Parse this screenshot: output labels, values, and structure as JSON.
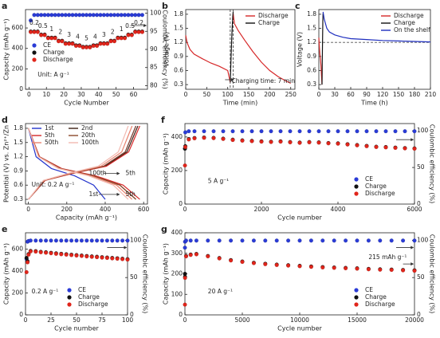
{
  "chart_data": [
    {
      "label": "a",
      "type": "scatter",
      "xlabel": "Cycle Number",
      "ylabel": "Capacity (mAh g⁻¹)",
      "y2label": "Coulombic efficiency (%)",
      "xlim": [
        -2,
        68
      ],
      "ylim": [
        0,
        780
      ],
      "y2lim": [
        79,
        101
      ],
      "xticks": [
        0,
        10,
        20,
        30,
        40,
        50,
        60
      ],
      "yticks": [
        0,
        200,
        400,
        600
      ],
      "y2ticks": [
        80,
        85,
        90,
        95,
        100
      ],
      "x": [
        1,
        3,
        5,
        7,
        9,
        11,
        13,
        15,
        17,
        19,
        21,
        23,
        25,
        27,
        29,
        31,
        33,
        35,
        37,
        39,
        41,
        43,
        45,
        47,
        49,
        51,
        53,
        55,
        57,
        59,
        61,
        63,
        65
      ],
      "series": [
        {
          "name": "CE",
          "color": "#2a3bd6",
          "axis": "y2",
          "values": [
            98,
            99.5,
            99.5,
            99.5,
            99.5,
            99.5,
            99.5,
            99.5,
            99.5,
            99.5,
            99.5,
            99.5,
            99.5,
            99.5,
            99.5,
            99.5,
            99.5,
            99.5,
            99.5,
            99.5,
            99.5,
            99.5,
            99.5,
            99.5,
            99.5,
            99.5,
            99.5,
            99.5,
            99.5,
            99.5,
            99.5,
            99.5,
            99.5
          ]
        },
        {
          "name": "Charge",
          "color": "#111111",
          "values": [
            565,
            565,
            565,
            535,
            535,
            505,
            505,
            505,
            475,
            475,
            450,
            450,
            450,
            430,
            430,
            415,
            415,
            415,
            430,
            430,
            450,
            450,
            450,
            475,
            475,
            505,
            505,
            505,
            535,
            535,
            565,
            565,
            565
          ]
        },
        {
          "name": "Discharge",
          "color": "#e0251b",
          "values": [
            560,
            560,
            560,
            530,
            530,
            500,
            500,
            500,
            470,
            470,
            445,
            445,
            445,
            425,
            425,
            410,
            410,
            410,
            425,
            425,
            445,
            445,
            445,
            470,
            470,
            500,
            500,
            500,
            530,
            530,
            560,
            560,
            560
          ]
        }
      ],
      "rate_labels": [
        0.2,
        0.5,
        1,
        2,
        3,
        4,
        5,
        4,
        3,
        2,
        1,
        0.5,
        0.2
      ],
      "annotations": [
        "Unit: A g⁻¹"
      ],
      "legend": "center left"
    },
    {
      "label": "b",
      "type": "line",
      "xlabel": "Time (min)",
      "ylabel": "Voltage (V)",
      "xlim": [
        0,
        260
      ],
      "ylim": [
        0.2,
        1.9
      ],
      "xticks": [
        0,
        50,
        100,
        150,
        200,
        250
      ],
      "yticks": [
        0.3,
        0.6,
        0.9,
        1.2,
        1.5,
        1.8
      ],
      "series": [
        {
          "name": "Discharge",
          "color": "#d62728",
          "x": [
            0,
            3,
            10,
            20,
            40,
            60,
            80,
            100,
            106,
            null,
            113,
            116,
            125,
            140,
            160,
            180,
            200,
            220,
            240,
            250
          ],
          "values": [
            1.35,
            1.2,
            1.05,
            0.95,
            0.85,
            0.76,
            0.69,
            0.6,
            0.35,
            null,
            1.82,
            1.6,
            1.45,
            1.25,
            1.0,
            0.78,
            0.6,
            0.47,
            0.37,
            0.33
          ]
        },
        {
          "name": "Charge",
          "color": "#111111",
          "x": [
            106,
            108,
            110,
            112,
            113
          ],
          "values": [
            0.35,
            0.9,
            1.4,
            1.75,
            1.85
          ]
        }
      ],
      "vlines": [
        106,
        113
      ],
      "annotations": [
        "Charging time: 7 min"
      ],
      "legend": "upper right"
    },
    {
      "label": "c",
      "type": "line",
      "xlabel": "Time (h)",
      "ylabel": "Voltage (V)",
      "xlim": [
        0,
        210
      ],
      "ylim": [
        0.2,
        1.9
      ],
      "xticks": [
        0,
        30,
        60,
        90,
        120,
        150,
        180,
        210
      ],
      "yticks": [
        0.3,
        0.6,
        0.9,
        1.2,
        1.5,
        1.8
      ],
      "series": [
        {
          "name": "Discharge",
          "color": "#d62728",
          "x": [
            0,
            1,
            2,
            3,
            4,
            5,
            6
          ],
          "values": [
            1.3,
            1.1,
            0.95,
            0.85,
            0.7,
            0.5,
            0.3
          ]
        },
        {
          "name": "Charge",
          "color": "#111111",
          "x": [
            6,
            6.5,
            7,
            7.5,
            8
          ],
          "values": [
            0.3,
            0.8,
            1.3,
            1.65,
            1.82
          ]
        },
        {
          "name": "On the shelf",
          "color": "#1f2fbf",
          "x": [
            8,
            10,
            15,
            20,
            30,
            45,
            60,
            90,
            120,
            150,
            180,
            210
          ],
          "values": [
            1.85,
            1.7,
            1.5,
            1.42,
            1.36,
            1.31,
            1.28,
            1.26,
            1.24,
            1.23,
            1.22,
            1.21
          ]
        }
      ],
      "hline": 1.2,
      "legend": "upper right"
    },
    {
      "label": "d",
      "type": "line",
      "xlabel": "Capacity (mAh g⁻¹)",
      "ylabel": "Potential (V) vs. Zn²⁺/Zn",
      "xlim": [
        -15,
        620
      ],
      "ylim": [
        0.2,
        1.9
      ],
      "xticks": [
        0,
        200,
        400,
        600
      ],
      "yticks": [
        0.3,
        0.6,
        0.9,
        1.2,
        1.5,
        1.8
      ],
      "series": [
        {
          "name": "1st",
          "color": "#2233cc",
          "x": [
            0,
            40,
            120,
            240,
            340,
            400,
            null,
            0,
            84,
            224,
            392,
            504,
            560
          ],
          "values": [
            1.8,
            1.2,
            0.95,
            0.8,
            0.6,
            0.3,
            null,
            0.3,
            0.7,
            0.85,
            1.0,
            1.3,
            1.85
          ]
        },
        {
          "name": "2nd",
          "color": "#3a1f12",
          "x": [
            0,
            56,
            168,
            336,
            476,
            560,
            null,
            0,
            86,
            228,
            399,
            513,
            570
          ],
          "values": [
            1.8,
            1.2,
            0.95,
            0.8,
            0.6,
            0.3,
            null,
            0.3,
            0.7,
            0.85,
            1.0,
            1.3,
            1.85
          ]
        },
        {
          "name": "5th",
          "color": "#d62728",
          "x": [
            0,
            58,
            174,
            348,
            493,
            580,
            null,
            0,
            87,
            232,
            406,
            522,
            580
          ],
          "values": [
            1.8,
            1.2,
            0.95,
            0.8,
            0.6,
            0.3,
            null,
            0.3,
            0.7,
            0.85,
            1.0,
            1.3,
            1.85
          ]
        },
        {
          "name": "20th",
          "color": "#8b4a2b",
          "x": [
            0,
            56,
            168,
            336,
            476,
            560,
            null,
            0,
            84,
            224,
            392,
            504,
            560
          ],
          "values": [
            1.8,
            1.2,
            0.95,
            0.8,
            0.6,
            0.3,
            null,
            0.3,
            0.7,
            0.85,
            1.0,
            1.3,
            1.85
          ]
        },
        {
          "name": "50th",
          "color": "#e8826e",
          "x": [
            0,
            54,
            162,
            324,
            459,
            540,
            null,
            0,
            81,
            216,
            378,
            486,
            540
          ],
          "values": [
            1.8,
            1.2,
            0.95,
            0.8,
            0.6,
            0.3,
            null,
            0.3,
            0.7,
            0.85,
            1.0,
            1.3,
            1.85
          ]
        },
        {
          "name": "100th",
          "color": "#f2b9b0",
          "x": [
            0,
            52,
            156,
            312,
            442,
            520,
            null,
            0,
            78,
            208,
            364,
            468,
            520
          ],
          "values": [
            1.8,
            1.2,
            0.95,
            0.8,
            0.6,
            0.3,
            null,
            0.3,
            0.7,
            0.85,
            1.0,
            1.3,
            1.85
          ]
        }
      ],
      "annotations": [
        "100th",
        "5th",
        "1st",
        "5th",
        "Unit: 0.2 A g⁻¹"
      ],
      "legend": "upper left"
    },
    {
      "label": "e",
      "type": "scatter",
      "xlabel": "Cycle number",
      "ylabel": "Capacity (mAh g⁻¹)",
      "y2label": "Coulombic efficiency (%)",
      "xlim": [
        0,
        100
      ],
      "ylim": [
        0,
        750
      ],
      "y2lim": [
        0,
        110
      ],
      "xticks": [
        0,
        25,
        50,
        75,
        100
      ],
      "yticks": [
        0,
        200,
        400,
        600
      ],
      "y2ticks": [
        0,
        50,
        100
      ],
      "x": [
        1,
        2,
        3,
        5,
        10,
        15,
        20,
        25,
        30,
        35,
        40,
        45,
        50,
        55,
        60,
        65,
        70,
        75,
        80,
        85,
        90,
        95,
        100
      ],
      "series": [
        {
          "name": "CE",
          "color": "#2a3bd6",
          "axis": "y2",
          "values": [
            75,
            98,
            99,
            99.5,
            99.5,
            99.5,
            99.5,
            99.5,
            99.5,
            99.5,
            99.5,
            99.5,
            99.5,
            99.5,
            99.5,
            99.5,
            99.5,
            99.5,
            99.5,
            99.5,
            99.5,
            99.5,
            99.5
          ]
        },
        {
          "name": "Charge",
          "color": "#111111",
          "values": [
            520,
            490,
            555,
            584,
            582,
            576,
            572,
            567,
            562,
            558,
            554,
            550,
            546,
            542,
            538,
            534,
            531,
            527,
            524,
            520,
            517,
            513,
            509
          ]
        },
        {
          "name": "Discharge",
          "color": "#e0251b",
          "values": [
            390,
            480,
            550,
            580,
            578,
            572,
            568,
            563,
            558,
            554,
            550,
            546,
            542,
            538,
            534,
            530,
            527,
            523,
            520,
            516,
            513,
            509,
            505
          ]
        }
      ],
      "annotations": [
        "0.2 A g⁻¹"
      ],
      "legend": "lower right"
    },
    {
      "label": "f",
      "type": "scatter",
      "xlabel": "Cycle number",
      "ylabel": "Capacity (mAh g⁻¹)",
      "y2label": "Coulombic efficiency (%)",
      "xlim": [
        0,
        6000
      ],
      "ylim": [
        0,
        480
      ],
      "y2lim": [
        0,
        110
      ],
      "xticks": [
        0,
        2000,
        4000,
        6000
      ],
      "yticks": [
        0,
        200,
        400
      ],
      "y2ticks": [
        0,
        50,
        100
      ],
      "x": [
        1,
        10,
        100,
        250,
        500,
        750,
        1000,
        1250,
        1500,
        1750,
        2000,
        2250,
        2500,
        2750,
        3000,
        3250,
        3500,
        3750,
        4000,
        4250,
        4500,
        4750,
        5000,
        5250,
        5500,
        5750,
        6000
      ],
      "series": [
        {
          "name": "CE",
          "color": "#2a3bd6",
          "axis": "y2",
          "values": [
            76,
            98,
            99.5,
            99.5,
            99.5,
            99.5,
            99.5,
            99.5,
            99.5,
            99.5,
            99.5,
            99.5,
            99.5,
            99.5,
            99.5,
            99.5,
            99.5,
            99.5,
            99.5,
            99.5,
            99.5,
            99.5,
            99.5,
            99.5,
            99.5,
            99.5,
            99.5
          ]
        },
        {
          "name": "Charge",
          "color": "#111111",
          "values": [
            330,
            345,
            388,
            394,
            397,
            395,
            390,
            384,
            380,
            377,
            374,
            372,
            374,
            370,
            367,
            370,
            368,
            364,
            362,
            357,
            352,
            347,
            342,
            340,
            337,
            334,
            332
          ]
        },
        {
          "name": "Discharge",
          "color": "#e0251b",
          "values": [
            230,
            340,
            385,
            392,
            395,
            393,
            388,
            382,
            378,
            375,
            372,
            370,
            372,
            368,
            365,
            368,
            366,
            362,
            360,
            355,
            350,
            345,
            340,
            338,
            335,
            332,
            330
          ]
        }
      ],
      "annotations": [
        "5 A g⁻¹"
      ],
      "legend": "lower right"
    },
    {
      "label": "g",
      "type": "scatter",
      "xlabel": "Cycle number",
      "ylabel": "Capacity (mAh g⁻¹)",
      "y2label": "Coulombic efficiency (%)",
      "xlim": [
        0,
        20000
      ],
      "ylim": [
        0,
        400
      ],
      "y2lim": [
        0,
        110
      ],
      "xticks": [
        0,
        5000,
        10000,
        15000,
        20000
      ],
      "yticks": [
        0,
        100,
        200,
        300,
        400
      ],
      "y2ticks": [
        0,
        50,
        100
      ],
      "x": [
        1,
        10,
        100,
        500,
        1000,
        2000,
        3000,
        4000,
        5000,
        6000,
        7000,
        8000,
        9000,
        10000,
        11000,
        12000,
        13000,
        14000,
        15000,
        16000,
        17000,
        18000,
        19000,
        20000
      ],
      "series": [
        {
          "name": "CE",
          "color": "#2a3bd6",
          "axis": "y2",
          "values": [
            90,
            98,
            99.5,
            99.5,
            99.5,
            99.5,
            99.5,
            99.5,
            99.5,
            99.5,
            99.5,
            99.5,
            99.5,
            99.5,
            99.5,
            99.5,
            99.5,
            99.5,
            99.5,
            99.5,
            99.5,
            99.5,
            99.5,
            99.5
          ]
        },
        {
          "name": "Charge",
          "color": "#111111",
          "values": [
            200,
            185,
            287,
            294,
            297,
            287,
            277,
            267,
            260,
            254,
            249,
            245,
            242,
            239,
            236,
            233,
            231,
            229,
            227,
            224,
            222,
            221,
            219,
            217
          ]
        },
        {
          "name": "Discharge",
          "color": "#e0251b",
          "values": [
            50,
            180,
            285,
            292,
            295,
            285,
            275,
            265,
            258,
            252,
            247,
            243,
            240,
            237,
            234,
            231,
            229,
            227,
            225,
            222,
            220,
            219,
            217,
            215
          ]
        }
      ],
      "annotations": [
        "20 A g⁻¹",
        "215 mAh g⁻¹"
      ],
      "legend": "lower right"
    }
  ]
}
